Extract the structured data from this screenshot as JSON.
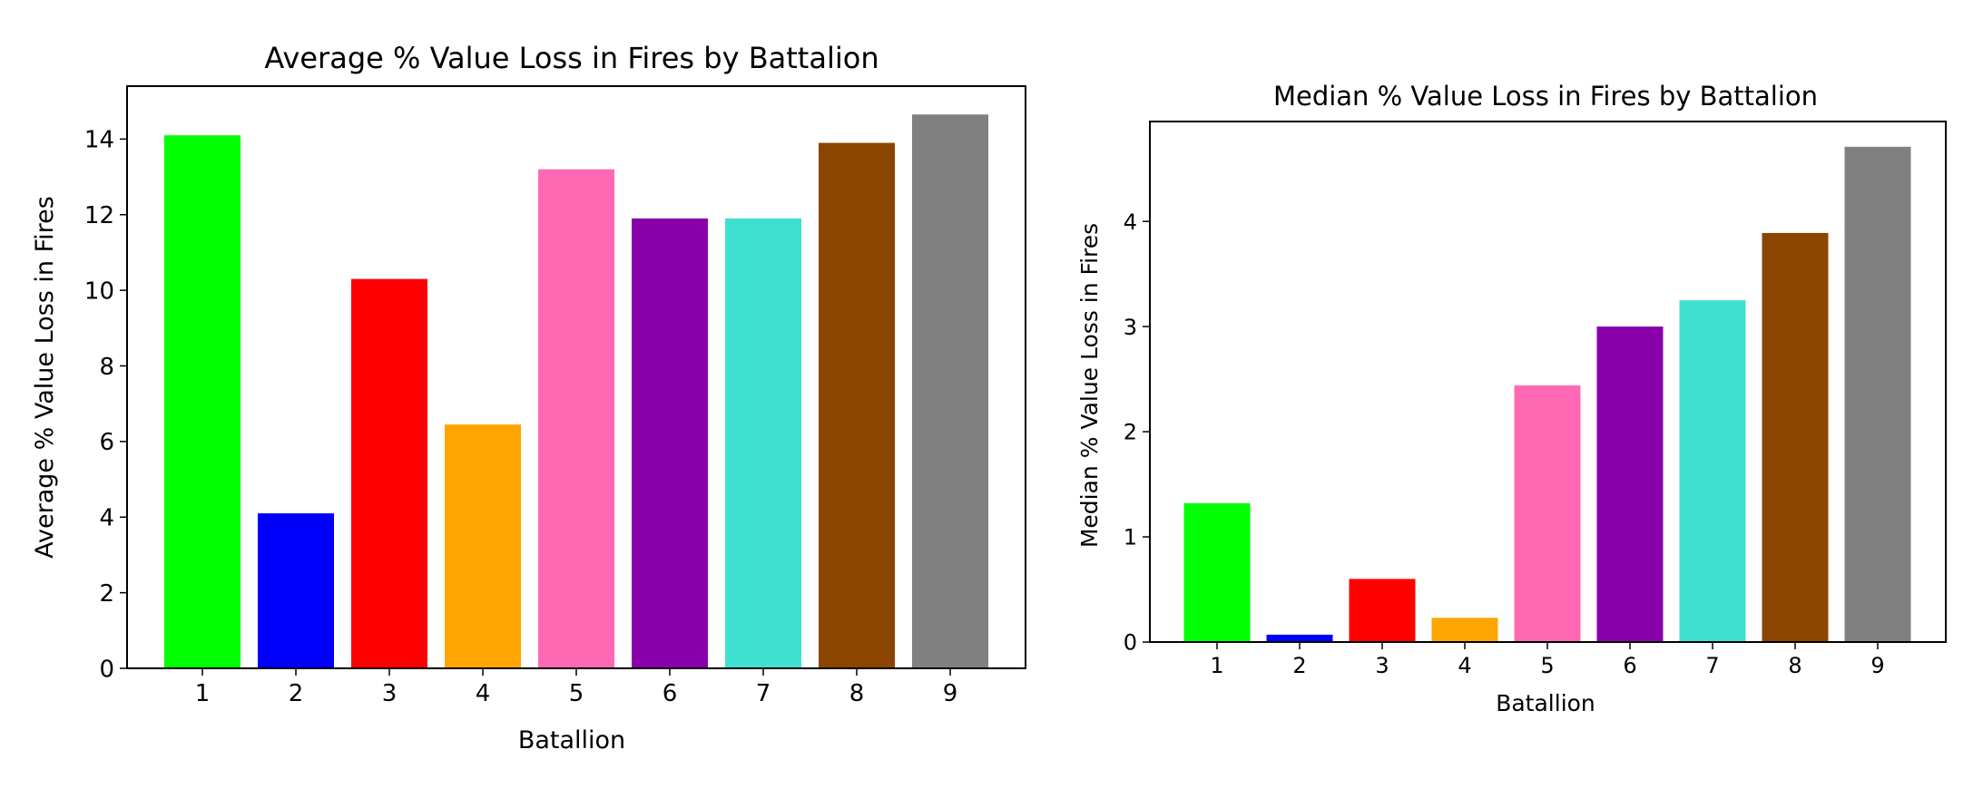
{
  "chart_data": [
    {
      "type": "bar",
      "title": "Average % Value Loss in Fires by Battalion",
      "xlabel": "Batallion",
      "ylabel": "Average % Value Loss in Fires",
      "categories": [
        "1",
        "2",
        "3",
        "4",
        "5",
        "6",
        "7",
        "8",
        "9"
      ],
      "values": [
        14.1,
        4.1,
        10.3,
        6.45,
        13.2,
        11.9,
        11.9,
        13.9,
        14.65
      ],
      "colors": [
        "#00ff00",
        "#0000ff",
        "#ff0000",
        "#ffa500",
        "#ff69b4",
        "#8800aa",
        "#40e0d0",
        "#8b4500",
        "#808080"
      ],
      "yticks": [
        0,
        2,
        4,
        6,
        8,
        10,
        12,
        14
      ],
      "ylim": [
        0,
        15.4
      ],
      "grid": false,
      "legend": "none"
    },
    {
      "type": "bar",
      "title": "Median % Value Loss in Fires by Battalion",
      "xlabel": "Batallion",
      "ylabel": "Median % Value Loss in Fires",
      "categories": [
        "1",
        "2",
        "3",
        "4",
        "5",
        "6",
        "7",
        "8",
        "9"
      ],
      "values": [
        1.32,
        0.07,
        0.6,
        0.23,
        2.44,
        3.0,
        3.25,
        3.89,
        4.71
      ],
      "colors": [
        "#00ff00",
        "#0000ff",
        "#ff0000",
        "#ffa500",
        "#ff69b4",
        "#8800aa",
        "#40e0d0",
        "#8b4500",
        "#808080"
      ],
      "yticks": [
        0,
        1,
        2,
        3,
        4
      ],
      "ylim": [
        0,
        4.95
      ],
      "grid": false,
      "legend": "none"
    }
  ]
}
